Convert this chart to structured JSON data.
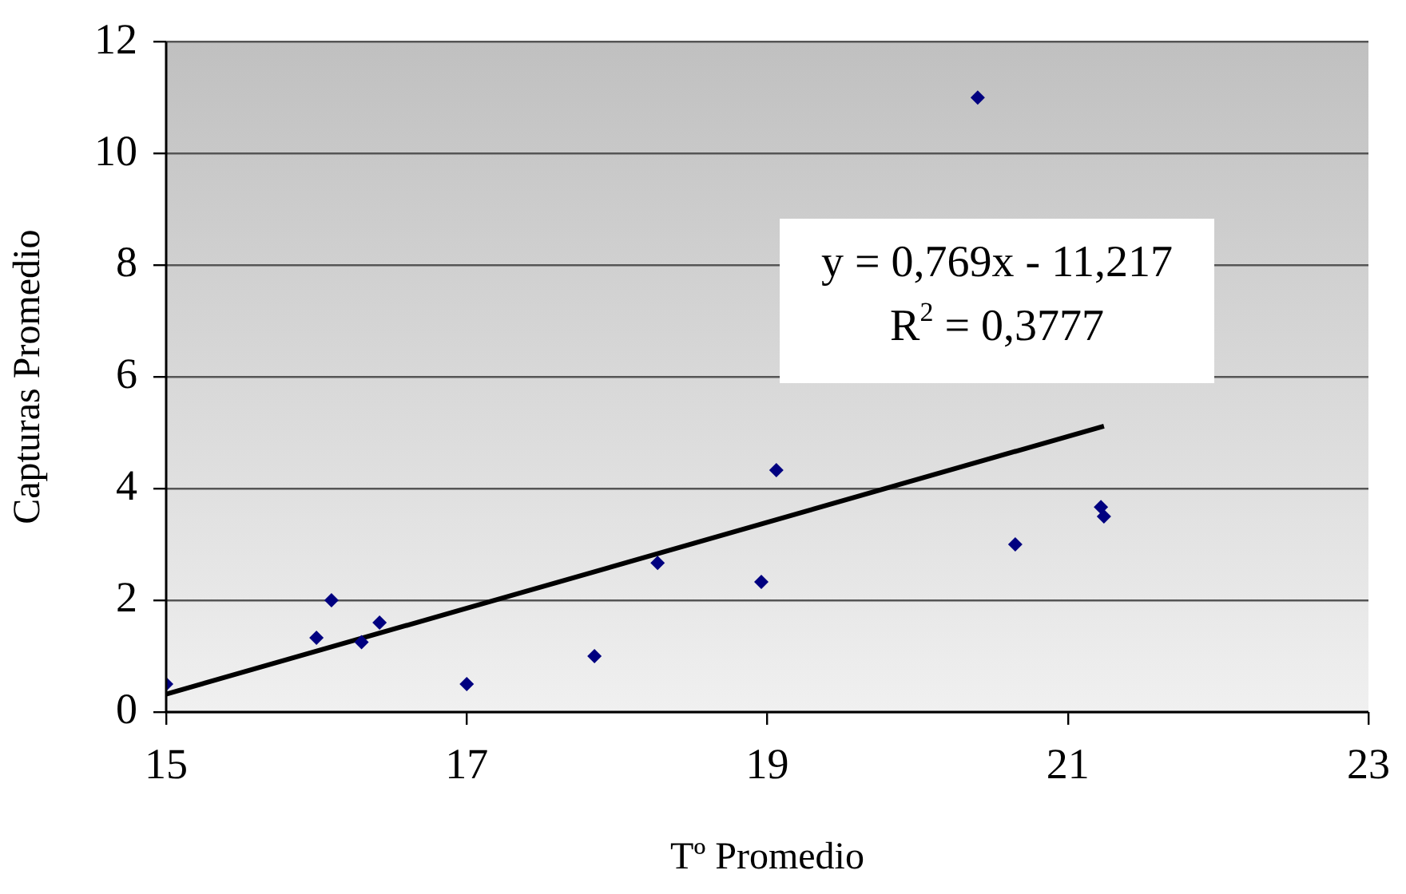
{
  "chart_data": {
    "type": "scatter",
    "xlabel": "Tº Promedio",
    "ylabel": "Capturas Promedio",
    "annotations": [
      "y = 0,769x - 11,217",
      "R$^{2}$ = 0,3777"
    ],
    "xlim": [
      15,
      23
    ],
    "xticks": [
      15,
      17,
      19,
      21,
      23
    ],
    "ylim": [
      0,
      12
    ],
    "yticks": [
      0,
      2,
      4,
      6,
      8,
      10,
      12
    ],
    "grid": "y",
    "marker": "diamond",
    "series": [
      {
        "color": "#000080",
        "x": [
          15.0,
          16.0,
          16.1,
          16.3,
          16.42,
          17.0,
          17.85,
          18.27,
          18.96,
          19.06,
          20.4,
          20.65,
          21.22,
          21.24
        ],
        "values": [
          0.5,
          1.33,
          2.0,
          1.25,
          1.6,
          0.5,
          1.0,
          2.67,
          2.33,
          4.33,
          11.0,
          3.0,
          3.67,
          3.5
        ]
      },
      {
        "type": "line",
        "color": "#000000",
        "marker": "none",
        "x": [
          15.0,
          21.24
        ],
        "values": [
          0.32,
          5.12
        ]
      }
    ]
  }
}
